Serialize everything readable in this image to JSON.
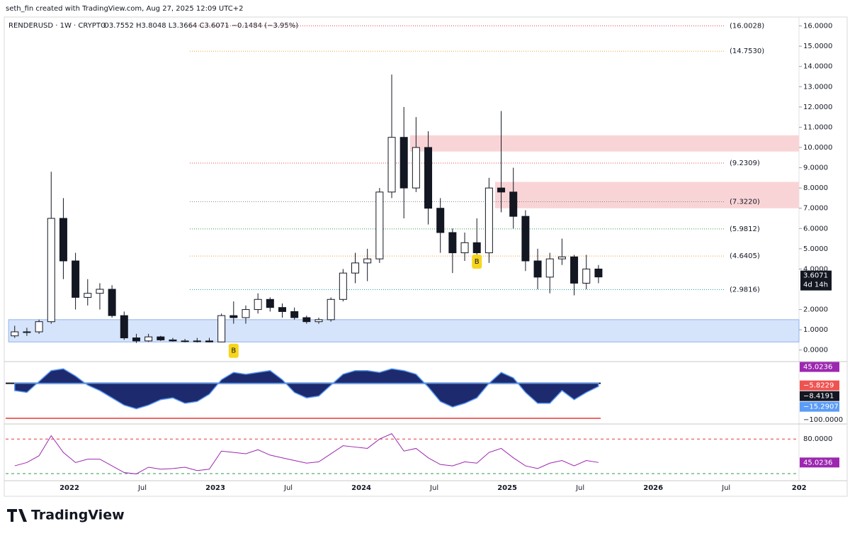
{
  "header": {
    "attribution": "seth_fin created with TradingView.com, Aug 27, 2025 12:09 UTC+2",
    "symbol": "RENDERUSD · 1W · CRYPTO",
    "ohlc": "O3.7552  H3.8048  L3.3664  C3.6071  −0.1484 (−3.95%)"
  },
  "chart_data": {
    "type": "candlestick",
    "x": [
      "2021-08",
      "2021-09",
      "2021-10",
      "2021-11",
      "2021-12",
      "2022-01",
      "2022-02",
      "2022-03",
      "2022-04",
      "2022-05",
      "2022-06",
      "2022-07",
      "2022-08",
      "2022-09",
      "2022-10",
      "2022-11",
      "2022-12",
      "2023-01",
      "2023-02",
      "2023-03",
      "2023-04",
      "2023-05",
      "2023-06",
      "2023-07",
      "2023-08",
      "2023-09",
      "2023-10",
      "2023-11",
      "2023-12",
      "2024-01",
      "2024-02",
      "2024-03",
      "2024-04",
      "2024-05",
      "2024-06",
      "2024-07",
      "2024-08",
      "2024-09",
      "2024-10",
      "2024-11",
      "2024-12",
      "2025-01",
      "2025-02",
      "2025-03",
      "2025-04",
      "2025-05",
      "2025-06",
      "2025-07",
      "2025-08"
    ],
    "open": [
      0.7,
      0.9,
      0.9,
      1.4,
      6.5,
      4.4,
      2.6,
      2.8,
      3.0,
      1.7,
      0.6,
      0.45,
      0.65,
      0.5,
      0.45,
      0.42,
      0.45,
      0.4,
      1.7,
      1.6,
      2.0,
      2.5,
      2.1,
      1.9,
      1.6,
      1.4,
      1.5,
      2.5,
      3.8,
      4.3,
      4.5,
      7.8,
      10.5,
      8.0,
      10.0,
      7.0,
      5.8,
      4.8,
      5.3,
      4.8,
      8.0,
      7.8,
      6.6,
      4.4,
      3.6,
      4.5,
      4.6,
      3.3,
      4.0
    ],
    "high": [
      1.2,
      1.1,
      1.5,
      8.8,
      7.5,
      4.8,
      3.5,
      3.3,
      3.2,
      1.9,
      0.8,
      0.8,
      0.7,
      0.6,
      0.55,
      0.6,
      0.6,
      1.8,
      2.4,
      2.2,
      2.8,
      2.6,
      2.3,
      2.1,
      1.7,
      1.6,
      2.6,
      4.0,
      4.8,
      5.0,
      8.0,
      13.6,
      12.0,
      11.5,
      10.8,
      7.5,
      6.0,
      5.8,
      6.5,
      8.5,
      11.8,
      9.0,
      6.9,
      5.0,
      4.8,
      5.5,
      4.7,
      4.7,
      4.2
    ],
    "low": [
      0.6,
      0.7,
      0.8,
      1.3,
      3.5,
      2.0,
      2.2,
      2.0,
      1.6,
      0.5,
      0.35,
      0.4,
      0.45,
      0.42,
      0.38,
      0.37,
      0.38,
      0.4,
      1.3,
      1.3,
      1.8,
      1.9,
      1.6,
      1.5,
      1.3,
      1.3,
      1.4,
      2.4,
      3.3,
      3.4,
      4.3,
      7.5,
      6.5,
      7.8,
      6.2,
      4.8,
      3.8,
      4.4,
      4.5,
      4.3,
      6.8,
      6.0,
      3.9,
      3.0,
      2.8,
      4.2,
      2.7,
      3.0,
      3.3
    ],
    "close": [
      0.9,
      0.9,
      1.4,
      6.5,
      4.4,
      2.6,
      2.8,
      3.0,
      1.7,
      0.6,
      0.45,
      0.65,
      0.5,
      0.45,
      0.42,
      0.45,
      0.4,
      1.7,
      1.6,
      2.0,
      2.5,
      2.1,
      1.9,
      1.6,
      1.4,
      1.5,
      2.5,
      3.8,
      4.3,
      4.5,
      7.8,
      10.5,
      8.0,
      10.0,
      7.0,
      5.8,
      4.8,
      5.3,
      4.8,
      8.0,
      7.8,
      6.6,
      4.4,
      3.6,
      4.5,
      4.6,
      3.3,
      4.0,
      3.6071
    ],
    "ylim": [
      -0.5,
      16.3
    ],
    "yticks": [
      {
        "value": 16,
        "label": "16.0000"
      },
      {
        "value": 15,
        "label": "15.0000"
      },
      {
        "value": 14,
        "label": "14.0000"
      },
      {
        "value": 13,
        "label": "13.0000"
      },
      {
        "value": 12,
        "label": "12.0000"
      },
      {
        "value": 11,
        "label": "11.0000"
      },
      {
        "value": 10,
        "label": "10.0000"
      },
      {
        "value": 9,
        "label": "9.0000"
      },
      {
        "value": 8,
        "label": "8.0000"
      },
      {
        "value": 7,
        "label": "7.0000"
      },
      {
        "value": 6,
        "label": "6.0000"
      },
      {
        "value": 5,
        "label": "5.0000"
      },
      {
        "value": 4,
        "label": "4.0000"
      },
      {
        "value": 2,
        "label": "2.0000"
      },
      {
        "value": 1,
        "label": "1.0000"
      },
      {
        "value": 0,
        "label": "0.0000"
      }
    ],
    "xticks": [
      {
        "value": "2022-01",
        "label": "2022"
      },
      {
        "value": "2022-07",
        "label": "Jul"
      },
      {
        "value": "2023-01",
        "label": "2023"
      },
      {
        "value": "2023-07",
        "label": "Jul"
      },
      {
        "value": "2024-01",
        "label": "2024"
      },
      {
        "value": "2024-07",
        "label": "Jul"
      },
      {
        "value": "2025-01",
        "label": "2025"
      },
      {
        "value": "2025-07",
        "label": "Jul"
      },
      {
        "value": "2026-01",
        "label": "2026"
      },
      {
        "value": "2026-07",
        "label": "Jul"
      },
      {
        "value": "2027-01",
        "label": "202"
      }
    ],
    "levels": [
      {
        "value": 16.0028,
        "label": "(16.0028)",
        "color": "#e0455a"
      },
      {
        "value": 14.753,
        "label": "(14.7530)",
        "color": "#f0a030"
      },
      {
        "value": 9.2309,
        "label": "(9.2309)",
        "color": "#e0455a"
      },
      {
        "value": 7.322,
        "label": "(7.3220)",
        "color": "#888888"
      },
      {
        "value": 5.9812,
        "label": "(5.9812)",
        "color": "#2e9e4e"
      },
      {
        "value": 4.6405,
        "label": "(4.6405)",
        "color": "#f0a030"
      },
      {
        "value": 2.9816,
        "label": "(2.9816)",
        "color": "#1aa1a8"
      }
    ],
    "zones": [
      {
        "low": 9.8,
        "high": 10.6,
        "start": "2024-05",
        "color": "#f9d4d6"
      },
      {
        "low": 7.0,
        "high": 8.3,
        "start": "2024-12",
        "color": "#f9d4d6"
      },
      {
        "low": 0.4,
        "high": 1.5,
        "start": "2021-08",
        "color": "#d6e4fb"
      }
    ],
    "markers": [
      {
        "x": "2023-02",
        "value": 0,
        "label": "B"
      },
      {
        "x": "2024-10",
        "value": 4.4,
        "label": "B"
      }
    ],
    "last": {
      "value": 3.6071,
      "label": "3.6071",
      "countdown": "4d 14h"
    },
    "oscillator": {
      "ylim": [
        -100,
        50
      ],
      "values": [
        -20,
        -25,
        5,
        35,
        40,
        20,
        -5,
        -20,
        -40,
        -60,
        -70,
        -60,
        -45,
        -40,
        -55,
        -50,
        -30,
        10,
        30,
        25,
        30,
        35,
        10,
        -25,
        -40,
        -35,
        -5,
        25,
        35,
        35,
        30,
        40,
        35,
        25,
        -10,
        -50,
        -65,
        -55,
        -40,
        0,
        30,
        15,
        -25,
        -55,
        -55,
        -20,
        -45,
        -25,
        -8.4191
      ],
      "labels": [
        {
          "value": 45.0236,
          "label": "45.0236",
          "color": "#9c27b0"
        },
        {
          "value": -5.8229,
          "label": "−5.8229",
          "color": "#ef5350"
        },
        {
          "value": -8.4191,
          "label": "−8.4191",
          "color": "#131722"
        },
        {
          "value": -15.2907,
          "label": "−15.2907",
          "color": "#5b9cf6"
        },
        {
          "value": -100,
          "label": "−100.0000",
          "color": ""
        }
      ]
    },
    "rsi": {
      "ylim": [
        20,
        95
      ],
      "values": [
        40,
        45,
        55,
        85,
        60,
        45,
        50,
        50,
        40,
        30,
        28,
        38,
        35,
        36,
        38,
        33,
        35,
        62,
        60,
        58,
        64,
        56,
        52,
        48,
        44,
        46,
        58,
        70,
        68,
        66,
        80,
        88,
        62,
        66,
        52,
        42,
        40,
        46,
        44,
        60,
        66,
        52,
        40,
        36,
        44,
        48,
        40,
        48,
        45.0236
      ],
      "labels": [
        {
          "value": 80,
          "label": "80.0000",
          "color": ""
        },
        {
          "value": 45.0236,
          "label": "45.0236",
          "color": "#9c27b0"
        }
      ]
    }
  },
  "footer": {
    "logo": "TradingView"
  }
}
